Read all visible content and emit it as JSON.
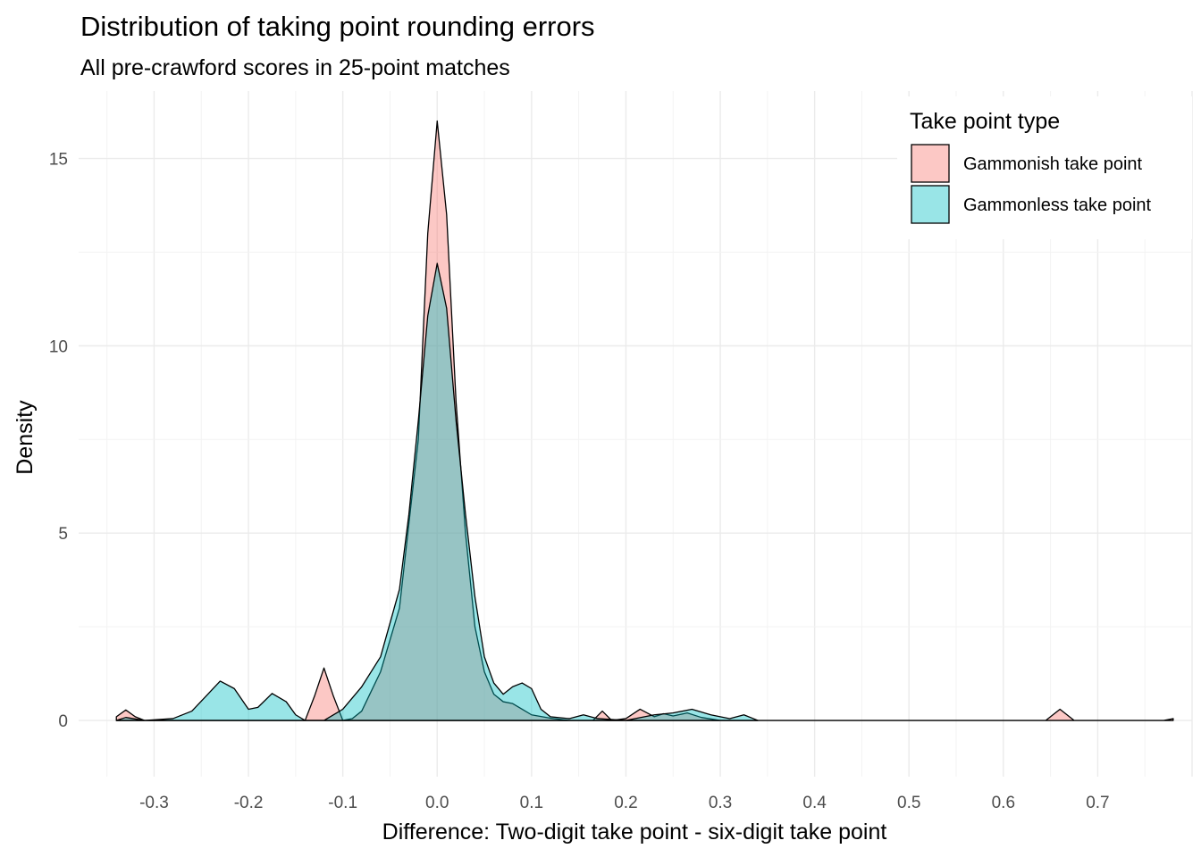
{
  "chart_data": {
    "type": "area",
    "title": "Distribution of taking point rounding errors",
    "subtitle": "All pre-crawford scores in 25-point matches",
    "xlabel": "Difference: Two-digit take point - six-digit take point",
    "ylabel": "Density",
    "xlim": [
      -0.38,
      0.8
    ],
    "ylim": [
      -1.5,
      16.8
    ],
    "x_ticks": [
      -0.3,
      -0.2,
      -0.1,
      0.0,
      0.1,
      0.2,
      0.3,
      0.4,
      0.5,
      0.6,
      0.7
    ],
    "x_tick_labels": [
      "-0.3",
      "-0.2",
      "-0.1",
      "0.0",
      "0.1",
      "0.2",
      "0.3",
      "0.4",
      "0.5",
      "0.6",
      "0.7"
    ],
    "y_ticks": [
      0,
      5,
      10,
      15
    ],
    "y_tick_labels": [
      "0",
      "5",
      "10",
      "15"
    ],
    "grid": true,
    "legend": {
      "title": "Take point type",
      "position": "top-right"
    },
    "series": [
      {
        "name": "Gammonish take point",
        "color": "#F8766D",
        "points": [
          [
            -0.34,
            0.1
          ],
          [
            -0.33,
            0.28
          ],
          [
            -0.32,
            0.1
          ],
          [
            -0.31,
            0.0
          ],
          [
            -0.14,
            0.0
          ],
          [
            -0.13,
            0.65
          ],
          [
            -0.12,
            1.4
          ],
          [
            -0.11,
            0.65
          ],
          [
            -0.1,
            0.0
          ],
          [
            -0.09,
            0.05
          ],
          [
            -0.08,
            0.25
          ],
          [
            -0.06,
            1.3
          ],
          [
            -0.04,
            3.0
          ],
          [
            -0.02,
            7.5
          ],
          [
            -0.01,
            13.0
          ],
          [
            0.0,
            16.0
          ],
          [
            0.01,
            13.5
          ],
          [
            0.02,
            8.5
          ],
          [
            0.03,
            5.0
          ],
          [
            0.04,
            2.5
          ],
          [
            0.05,
            1.3
          ],
          [
            0.06,
            0.7
          ],
          [
            0.07,
            0.5
          ],
          [
            0.08,
            0.45
          ],
          [
            0.09,
            0.3
          ],
          [
            0.1,
            0.15
          ],
          [
            0.12,
            0.06
          ],
          [
            0.14,
            0.0
          ],
          [
            0.165,
            0.0
          ],
          [
            0.175,
            0.25
          ],
          [
            0.185,
            0.0
          ],
          [
            0.2,
            0.05
          ],
          [
            0.215,
            0.3
          ],
          [
            0.23,
            0.1
          ],
          [
            0.24,
            0.18
          ],
          [
            0.25,
            0.12
          ],
          [
            0.265,
            0.2
          ],
          [
            0.28,
            0.08
          ],
          [
            0.3,
            0.0
          ],
          [
            0.645,
            0.0
          ],
          [
            0.66,
            0.3
          ],
          [
            0.675,
            0.0
          ],
          [
            0.77,
            0.0
          ],
          [
            0.78,
            0.05
          ]
        ]
      },
      {
        "name": "Gammonless take point",
        "color": "#00BFC4",
        "points": [
          [
            -0.34,
            0.0
          ],
          [
            -0.33,
            0.08
          ],
          [
            -0.31,
            0.0
          ],
          [
            -0.28,
            0.05
          ],
          [
            -0.26,
            0.25
          ],
          [
            -0.245,
            0.65
          ],
          [
            -0.23,
            1.05
          ],
          [
            -0.215,
            0.85
          ],
          [
            -0.2,
            0.3
          ],
          [
            -0.19,
            0.35
          ],
          [
            -0.175,
            0.72
          ],
          [
            -0.16,
            0.5
          ],
          [
            -0.15,
            0.15
          ],
          [
            -0.14,
            0.0
          ],
          [
            -0.12,
            0.0
          ],
          [
            -0.1,
            0.3
          ],
          [
            -0.08,
            0.9
          ],
          [
            -0.06,
            1.7
          ],
          [
            -0.04,
            3.5
          ],
          [
            -0.03,
            5.5
          ],
          [
            -0.02,
            8.0
          ],
          [
            -0.01,
            10.8
          ],
          [
            0.0,
            12.2
          ],
          [
            0.01,
            11.0
          ],
          [
            0.02,
            8.0
          ],
          [
            0.03,
            5.5
          ],
          [
            0.04,
            3.3
          ],
          [
            0.05,
            1.7
          ],
          [
            0.06,
            1.0
          ],
          [
            0.07,
            0.7
          ],
          [
            0.08,
            0.9
          ],
          [
            0.09,
            1.0
          ],
          [
            0.1,
            0.85
          ],
          [
            0.11,
            0.3
          ],
          [
            0.12,
            0.1
          ],
          [
            0.14,
            0.05
          ],
          [
            0.155,
            0.15
          ],
          [
            0.17,
            0.05
          ],
          [
            0.2,
            0.0
          ],
          [
            0.23,
            0.15
          ],
          [
            0.25,
            0.2
          ],
          [
            0.27,
            0.3
          ],
          [
            0.29,
            0.15
          ],
          [
            0.31,
            0.05
          ],
          [
            0.325,
            0.15
          ],
          [
            0.34,
            0.0
          ]
        ]
      }
    ]
  }
}
